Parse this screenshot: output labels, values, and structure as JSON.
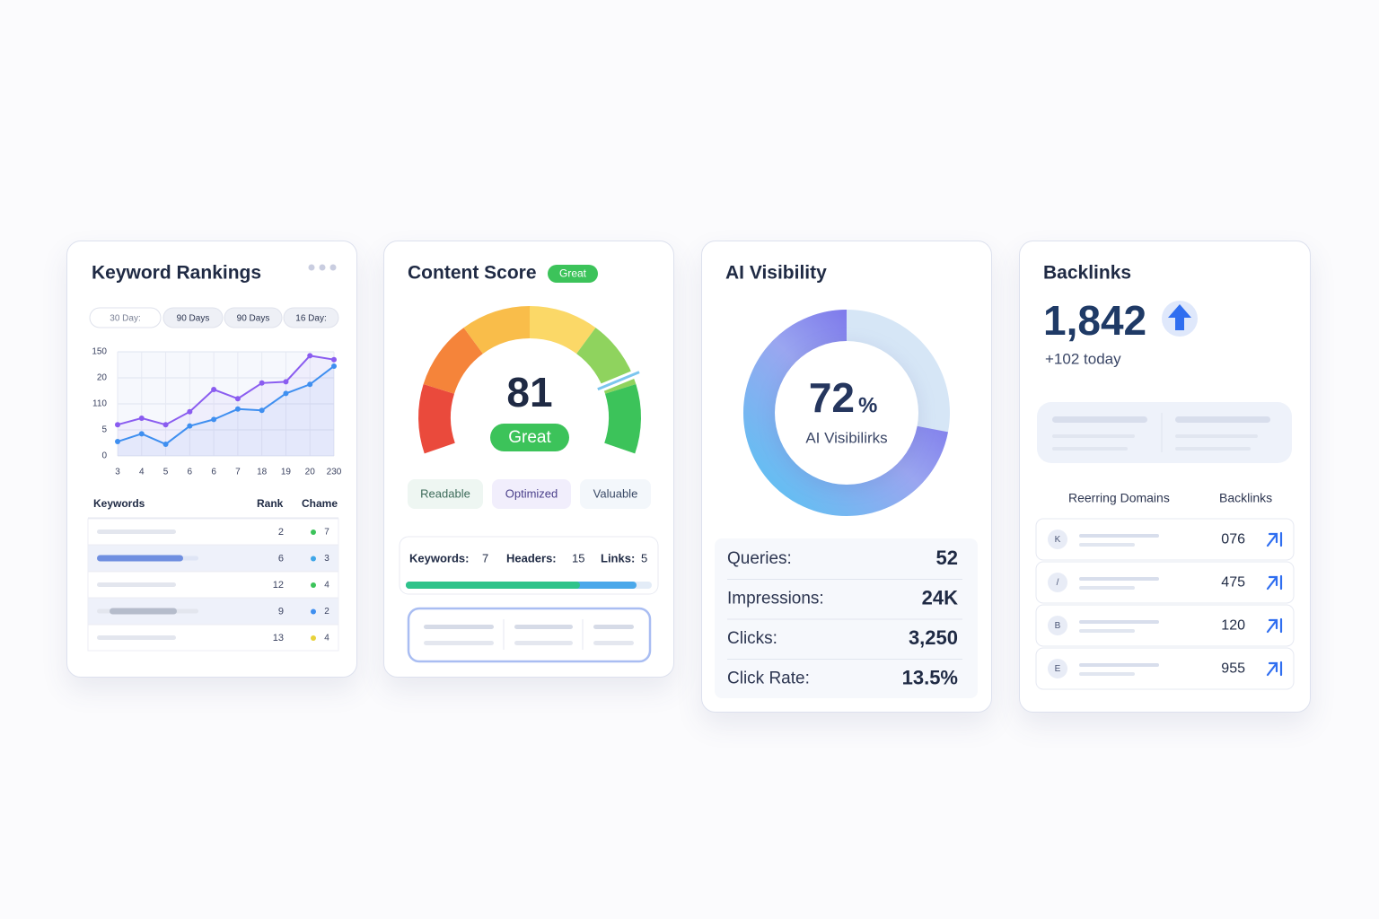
{
  "keyword_rankings": {
    "title": "Keyword Rankings",
    "tabs": [
      "30 Day:",
      "90 Days",
      "90 Days",
      "16 Day:"
    ],
    "chart": {
      "type": "line",
      "y_labels": [
        "0",
        "5",
        "110",
        "20",
        "150"
      ],
      "ylim": [
        0,
        4
      ],
      "categories": [
        "3",
        "4",
        "5",
        "6",
        "6",
        "7",
        "18",
        "19",
        "20",
        "230"
      ],
      "series": [
        {
          "color": "#8a5cf0",
          "values": [
            1.2,
            1.45,
            1.2,
            1.7,
            2.55,
            2.2,
            2.8,
            2.85,
            3.85,
            3.7
          ]
        },
        {
          "color": "#3f8ff0",
          "values": [
            0.55,
            0.85,
            0.45,
            1.15,
            1.4,
            1.8,
            1.75,
            2.4,
            2.75,
            3.45
          ]
        }
      ]
    },
    "table": {
      "headers": [
        "Keywords",
        "Rank",
        "Chame"
      ],
      "rows": [
        {
          "rank": "2",
          "change": "7",
          "color": "#3cc35a"
        },
        {
          "rank": "6",
          "change": "3",
          "color": "#3fa6e8"
        },
        {
          "rank": "12",
          "change": "4",
          "color": "#3cc35a"
        },
        {
          "rank": "9",
          "change": "2",
          "color": "#3f8ff0"
        },
        {
          "rank": "13",
          "change": "4",
          "color": "#e8d23a"
        }
      ]
    }
  },
  "content_score": {
    "title": "Content Score",
    "badge": "Great",
    "score": 81,
    "score_max": 100,
    "status": "Great",
    "tags": [
      "Readable",
      "Optimized",
      "Valuable"
    ],
    "stats": [
      {
        "label": "Keywords:",
        "value": "7"
      },
      {
        "label": "Headers:",
        "value": "15"
      },
      {
        "label": "Links:",
        "value": "5"
      }
    ]
  },
  "ai_visibility": {
    "title": "AI Visibility",
    "value": 72,
    "unit": "%",
    "label": "AI Visibilirks",
    "metrics": [
      {
        "label": "Queries:",
        "value": "52"
      },
      {
        "label": "Impressions:",
        "value": "24K"
      },
      {
        "label": "Clicks:",
        "value": "3,250"
      },
      {
        "label": "Click Rate:",
        "value": "13.5%"
      }
    ]
  },
  "backlinks": {
    "title": "Backlinks",
    "total": "1,842",
    "delta": "+102 today",
    "headers": [
      "Reerring Domains",
      "Backlinks"
    ],
    "rows": [
      {
        "icon": "K",
        "value": "076"
      },
      {
        "icon": "/",
        "value": "475"
      },
      {
        "icon": "B",
        "value": "120"
      },
      {
        "icon": "E",
        "value": "955"
      }
    ]
  }
}
